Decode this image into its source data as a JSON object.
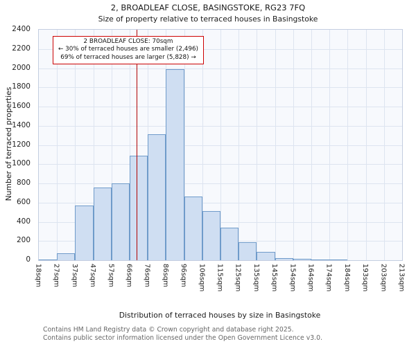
{
  "title": "2, BROADLEAF CLOSE, BASINGSTOKE, RG23 7FQ",
  "subtitle": "Size of property relative to terraced houses in Basingstoke",
  "annotation": {
    "line1": "2 BROADLEAF CLOSE: 70sqm",
    "line2": "← 30% of terraced houses are smaller (2,496)",
    "line3": "69% of terraced houses are larger (5,828) →"
  },
  "footer": {
    "line1": "Contains HM Land Registry data © Crown copyright and database right 2025.",
    "line2": "Contains public sector information licensed under the Open Government Licence v3.0."
  },
  "chart_data": {
    "type": "bar",
    "title": "2, BROADLEAF CLOSE, BASINGSTOKE, RG23 7FQ",
    "subtitle": "Size of property relative to terraced houses in Basingstoke",
    "xlabel": "Distribution of terraced houses by size in Basingstoke",
    "ylabel": "Number of terraced properties",
    "bin_edges_sqm": [
      18,
      27,
      37,
      47,
      57,
      66,
      76,
      86,
      96,
      106,
      115,
      125,
      135,
      145,
      154,
      164,
      174,
      184,
      193,
      203,
      213
    ],
    "x_tick_labels": [
      "18sqm",
      "27sqm",
      "37sqm",
      "47sqm",
      "57sqm",
      "66sqm",
      "76sqm",
      "86sqm",
      "96sqm",
      "106sqm",
      "115sqm",
      "125sqm",
      "135sqm",
      "145sqm",
      "154sqm",
      "164sqm",
      "174sqm",
      "184sqm",
      "193sqm",
      "203sqm",
      "213sqm"
    ],
    "values": [
      10,
      75,
      570,
      760,
      800,
      1090,
      1310,
      1990,
      660,
      510,
      340,
      190,
      90,
      25,
      15,
      10,
      5,
      0,
      0,
      0
    ],
    "ylim": [
      0,
      2400
    ],
    "y_ticks": [
      0,
      200,
      400,
      600,
      800,
      1000,
      1200,
      1400,
      1600,
      1800,
      2000,
      2200,
      2400
    ],
    "marker_value_sqm": 70,
    "grid": true,
    "legend": false,
    "colors": {
      "bar_fill": "#cfdef2",
      "bar_edge": "#6f9bca",
      "marker_line": "#b00000",
      "annotation_border": "#cc0000",
      "grid_line": "#dde4f0",
      "plot_background": "#f7f9fd"
    }
  }
}
